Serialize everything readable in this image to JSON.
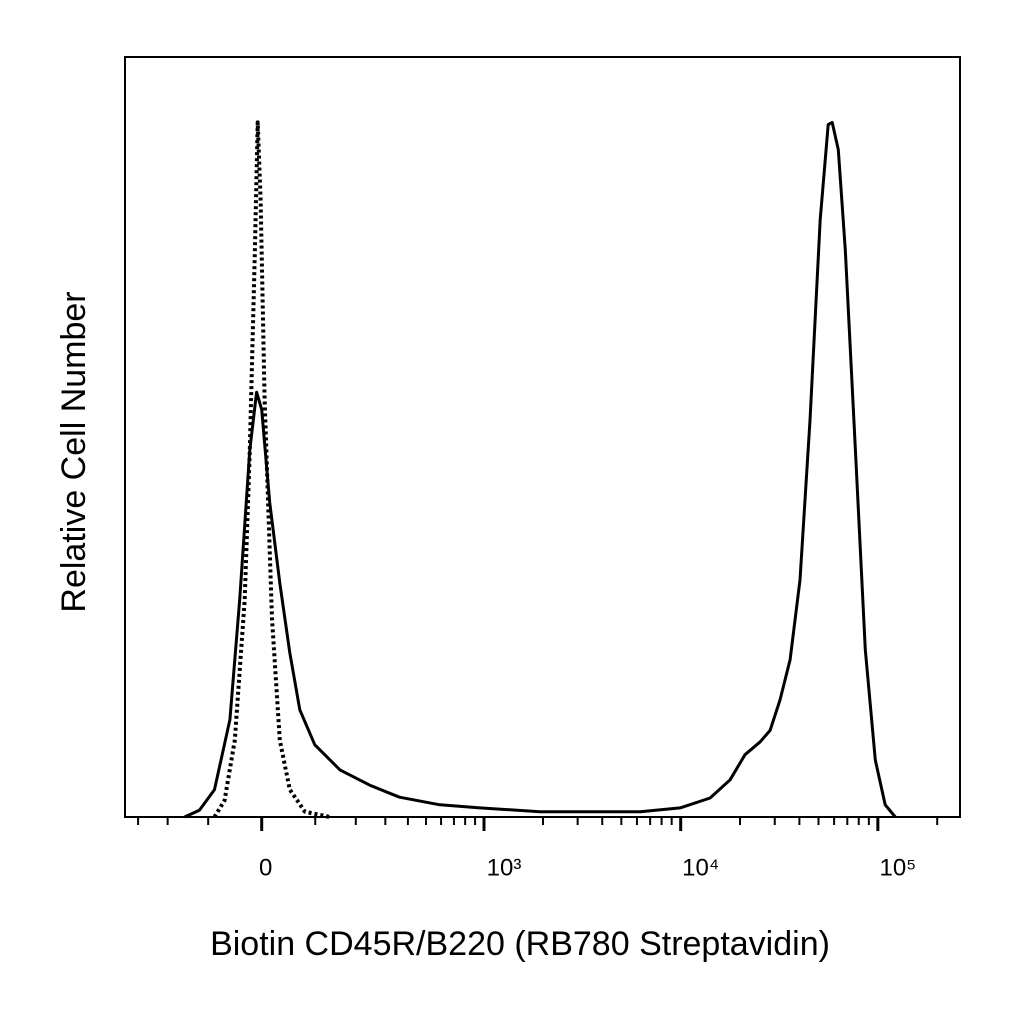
{
  "chart_data": {
    "type": "line",
    "xlabel": "Biotin CD45R/B220 (RB780 Streptavidin)",
    "ylabel": "Relative Cell Number",
    "xscale": "biexponential",
    "xlim": [
      -355,
      261000
    ],
    "ylim": [
      0,
      100
    ],
    "xticks": [
      0,
      {
        "value": 1000,
        "label": "10³"
      },
      {
        "value": 10000,
        "label": "10⁴"
      },
      {
        "value": 100000,
        "label": "10⁵"
      }
    ],
    "xminorticks": [
      -300,
      -200,
      -100,
      100,
      200,
      300,
      400,
      500,
      600,
      700,
      800,
      900,
      2000,
      3000,
      4000,
      5000,
      6000,
      7000,
      8000,
      9000,
      20000,
      30000,
      40000,
      50000,
      60000,
      70000,
      80000,
      90000,
      200000
    ],
    "series": [
      {
        "color": "#000000",
        "dash": "solid",
        "x": [
          -154,
          -119,
          -87,
          -57,
          -39,
          -21,
          -9,
          0,
          14,
          32,
          50,
          69,
          99,
          157,
          243,
          360,
          591,
          953,
          1930,
          6230,
          9930,
          14100,
          17800,
          21200,
          25300,
          28400,
          31900,
          35900,
          40300,
          45300,
          51000,
          56000,
          58700,
          63000,
          68400,
          76900,
          86400,
          97100,
          109000,
          122600
        ],
        "values": [
          0,
          0.9,
          3.6,
          12.8,
          28.6,
          48.3,
          55.9,
          53.6,
          41.4,
          30.8,
          21.6,
          14.1,
          9.5,
          6.2,
          4.2,
          2.6,
          1.6,
          1.2,
          0.7,
          0.7,
          1.2,
          2.5,
          4.9,
          8.2,
          9.9,
          11.4,
          15.4,
          20.7,
          31.2,
          52.2,
          78.6,
          91.1,
          91.4,
          87.8,
          74.6,
          48.3,
          22.0,
          7.5,
          1.6,
          0
        ]
      },
      {
        "color": "#000000",
        "dash": "dotted",
        "x": [
          -87,
          -67,
          -48,
          -30,
          -21,
          -12,
          -7,
          -2,
          5,
          18,
          32,
          50,
          79,
          132
        ],
        "values": [
          0,
          2.2,
          10.1,
          28.6,
          48.3,
          74.6,
          91.4,
          81.3,
          55.0,
          26.1,
          10.1,
          3.6,
          0.7,
          0
        ]
      }
    ]
  }
}
